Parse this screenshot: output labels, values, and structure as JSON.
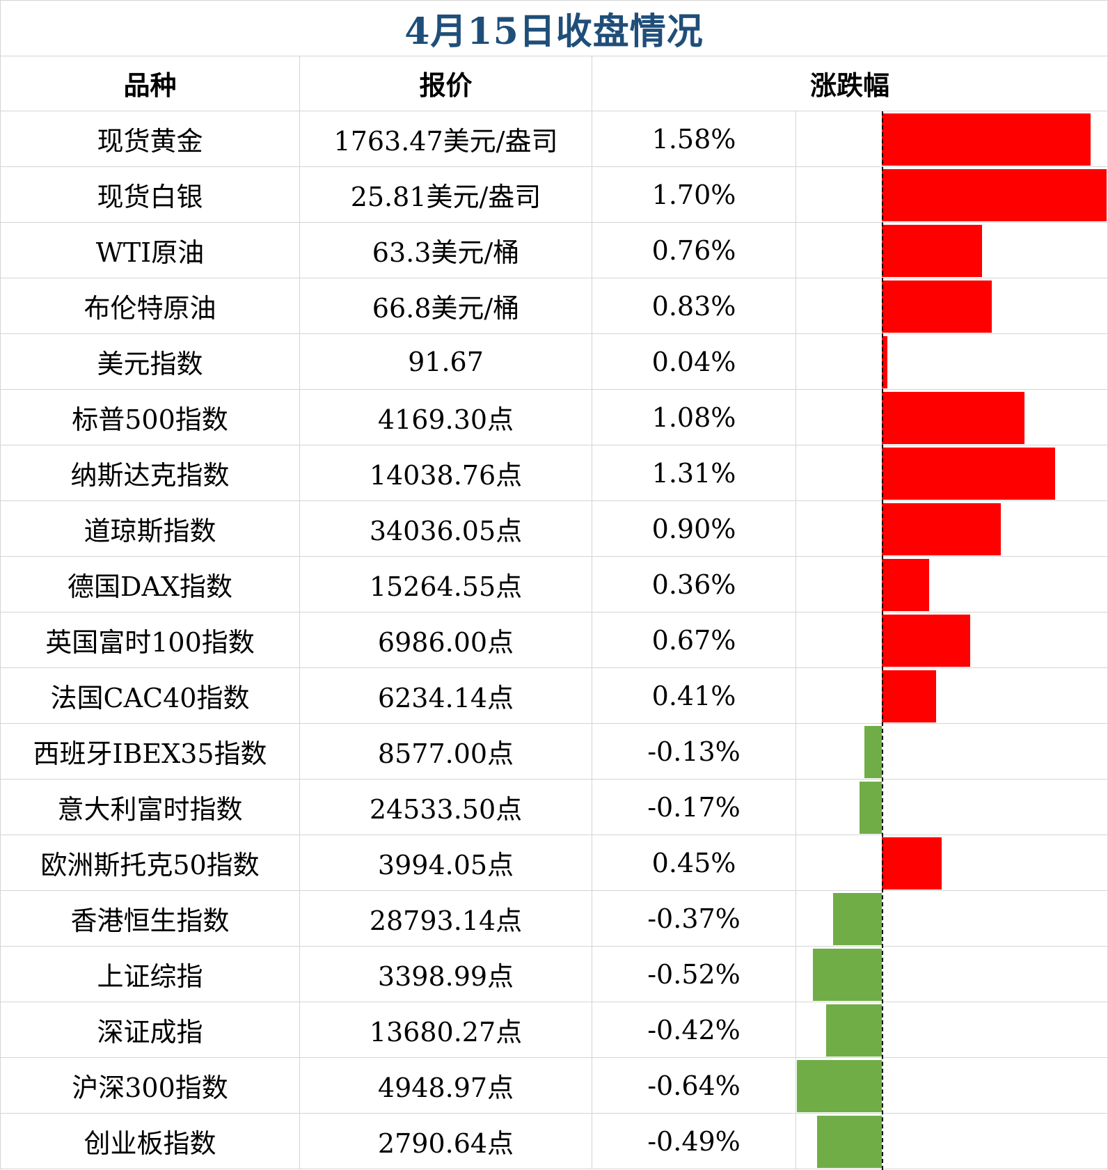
{
  "title": "4月15日收盘情况",
  "headers": {
    "name": "品种",
    "price": "报价",
    "change": "涨跌幅"
  },
  "colors": {
    "title": "#1f4e79",
    "up": "#ff0000",
    "down": "#70ad47",
    "grid": "#d4d4d4"
  },
  "rows": [
    {
      "name": "现货黄金",
      "price": "1763.47美元/盎司",
      "change": "1.58%",
      "value": 1.58
    },
    {
      "name": "现货白银",
      "price": "25.81美元/盎司",
      "change": "1.70%",
      "value": 1.7
    },
    {
      "name": "WTI原油",
      "price": "63.3美元/桶",
      "change": "0.76%",
      "value": 0.76
    },
    {
      "name": "布伦特原油",
      "price": "66.8美元/桶",
      "change": "0.83%",
      "value": 0.83
    },
    {
      "name": "美元指数",
      "price": "91.67",
      "change": "0.04%",
      "value": 0.04
    },
    {
      "name": "标普500指数",
      "price": "4169.30点",
      "change": "1.08%",
      "value": 1.08
    },
    {
      "name": "纳斯达克指数",
      "price": "14038.76点",
      "change": "1.31%",
      "value": 1.31
    },
    {
      "name": "道琼斯指数",
      "price": "34036.05点",
      "change": "0.90%",
      "value": 0.9
    },
    {
      "name": "德国DAX指数",
      "price": "15264.55点",
      "change": "0.36%",
      "value": 0.36
    },
    {
      "name": "英国富时100指数",
      "price": "6986.00点",
      "change": "0.67%",
      "value": 0.67
    },
    {
      "name": "法国CAC40指数",
      "price": "6234.14点",
      "change": "0.41%",
      "value": 0.41
    },
    {
      "name": "西班牙IBEX35指数",
      "price": "8577.00点",
      "change": "-0.13%",
      "value": -0.13
    },
    {
      "name": "意大利富时指数",
      "price": "24533.50点",
      "change": "-0.17%",
      "value": -0.17
    },
    {
      "name": "欧洲斯托克50指数",
      "price": "3994.05点",
      "change": "0.45%",
      "value": 0.45
    },
    {
      "name": "香港恒生指数",
      "price": "28793.14点",
      "change": "-0.37%",
      "value": -0.37
    },
    {
      "name": "上证综指",
      "price": "3398.99点",
      "change": "-0.52%",
      "value": -0.52
    },
    {
      "name": "深证成指",
      "price": "13680.27点",
      "change": "-0.42%",
      "value": -0.42
    },
    {
      "name": "沪深300指数",
      "price": "4948.97点",
      "change": "-0.64%",
      "value": -0.64
    },
    {
      "name": "创业板指数",
      "price": "2790.64点",
      "change": "-0.49%",
      "value": -0.49
    }
  ],
  "chart_data": {
    "type": "bar",
    "orientation": "horizontal",
    "title": "4月15日收盘情况",
    "xlabel": "涨跌幅",
    "ylabel": "品种",
    "categories": [
      "现货黄金",
      "现货白银",
      "WTI原油",
      "布伦特原油",
      "美元指数",
      "标普500指数",
      "纳斯达克指数",
      "道琼斯指数",
      "德国DAX指数",
      "英国富时100指数",
      "法国CAC40指数",
      "西班牙IBEX35指数",
      "意大利富时指数",
      "欧洲斯托克50指数",
      "香港恒生指数",
      "上证综指",
      "深证成指",
      "沪深300指数",
      "创业板指数"
    ],
    "values": [
      1.58,
      1.7,
      0.76,
      0.83,
      0.04,
      1.08,
      1.31,
      0.9,
      0.36,
      0.67,
      0.41,
      -0.13,
      -0.17,
      0.45,
      -0.37,
      -0.52,
      -0.42,
      -0.64,
      -0.49
    ],
    "unit": "%",
    "positive_color": "#ff0000",
    "negative_color": "#70ad47",
    "xlim": [
      -0.64,
      1.7
    ],
    "grid": false,
    "legend": "none"
  }
}
